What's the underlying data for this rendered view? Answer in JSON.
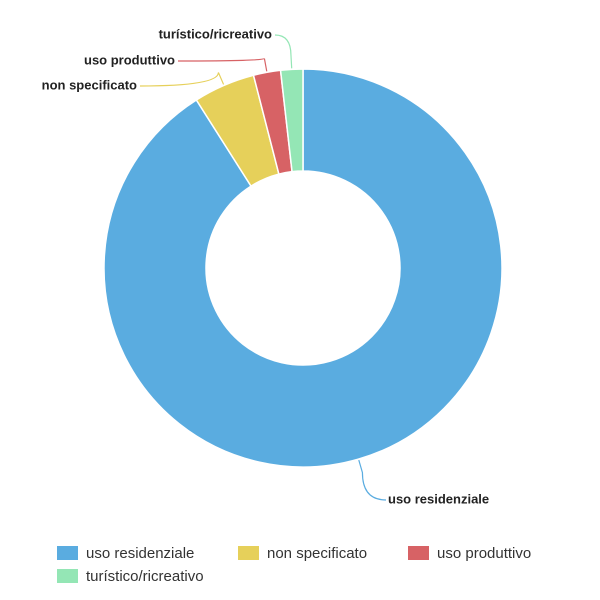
{
  "chart_data": {
    "type": "pie",
    "donut": true,
    "labels": [
      "uso residenziale",
      "non specificato",
      "uso produttivo",
      "turístico/ricreativo"
    ],
    "values": [
      91.0,
      5.0,
      2.2,
      1.8
    ],
    "colors": [
      "#5aace0",
      "#e6d05a",
      "#d76265",
      "#94e6b5"
    ],
    "legend_position": "bottom"
  }
}
